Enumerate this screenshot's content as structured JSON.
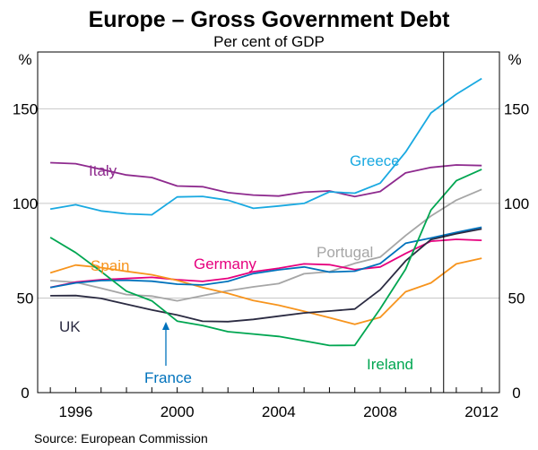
{
  "chart_data": {
    "type": "line",
    "title": "Europe – Gross Government Debt",
    "subtitle": "Per cent of GDP",
    "ylabel_left": "%",
    "ylabel_right": "%",
    "ylim": [
      0,
      180
    ],
    "xlim": [
      1994.5,
      2012.7
    ],
    "y_ticks": [
      0,
      50,
      100,
      150
    ],
    "x_ticks": [
      1996,
      2000,
      2004,
      2008,
      2012
    ],
    "forecast_line_x": 2010.5,
    "grid": true,
    "source": "Source: European Commission",
    "years": [
      1995,
      1996,
      1997,
      1998,
      1999,
      2000,
      2001,
      2002,
      2003,
      2004,
      2005,
      2006,
      2007,
      2008,
      2009,
      2010,
      2011,
      2012
    ],
    "series": [
      {
        "name": "Italy",
        "color": "#8e2a8e",
        "values": [
          121.5,
          121,
          118,
          115,
          113.7,
          109.2,
          108.8,
          105.7,
          104.4,
          103.9,
          105.9,
          106.6,
          103.6,
          106.3,
          116.1,
          119,
          120.3,
          120
        ]
      },
      {
        "name": "Greece",
        "color": "#19a9e1",
        "values": [
          97,
          99.3,
          96,
          94.5,
          94,
          103.4,
          103.7,
          101.7,
          97.4,
          98.6,
          100,
          106.1,
          105.4,
          110.7,
          127.1,
          147.8,
          157.7,
          166
        ]
      },
      {
        "name": "Portugal",
        "color": "#a6a6a6",
        "values": [
          59.2,
          58.3,
          55.2,
          51.8,
          51,
          48.5,
          51.2,
          53.8,
          55.9,
          57.6,
          62.8,
          63.9,
          68.3,
          71.6,
          83,
          93.3,
          101.7,
          107.4
        ]
      },
      {
        "name": "Germany",
        "color": "#e6007e",
        "values": [
          55.6,
          58.4,
          59.7,
          60.3,
          60.9,
          59.7,
          58.8,
          60.4,
          63.9,
          65.7,
          68,
          67.6,
          65,
          66.4,
          73.5,
          80,
          81,
          80.5
        ]
      },
      {
        "name": "Spain",
        "color": "#f7941d",
        "values": [
          63.3,
          67.4,
          66.1,
          64.1,
          62.3,
          59.3,
          55.5,
          52.5,
          48.7,
          46.2,
          43,
          39.6,
          36.1,
          39.8,
          53.3,
          58,
          68,
          71
        ]
      },
      {
        "name": "France",
        "color": "#0072bc",
        "values": [
          55.5,
          58,
          59.2,
          59.4,
          58.9,
          57.3,
          56.9,
          58.8,
          62.9,
          64.9,
          66.4,
          63.7,
          64.2,
          68.2,
          78.9,
          81.7,
          84.7,
          87.4
        ]
      },
      {
        "name": "UK",
        "color": "#2b2b42",
        "values": [
          51.2,
          51.3,
          49.8,
          46.7,
          43.7,
          41,
          37.7,
          37.5,
          38.7,
          40.4,
          42.1,
          43.1,
          44.2,
          54.4,
          69.6,
          80.9,
          84,
          86.5
        ]
      },
      {
        "name": "Ireland",
        "color": "#00a651",
        "values": [
          82,
          74,
          64,
          53.6,
          48.5,
          37.8,
          35.5,
          32.2,
          31,
          29.7,
          27.4,
          24.9,
          25,
          44.3,
          65.2,
          96.5,
          112,
          118
        ]
      }
    ],
    "labels": {
      "italy": "Italy",
      "greece": "Greece",
      "portugal": "Portugal",
      "germany": "Germany",
      "spain": "Spain",
      "uk": "UK",
      "france": "France",
      "ireland": "Ireland"
    }
  }
}
